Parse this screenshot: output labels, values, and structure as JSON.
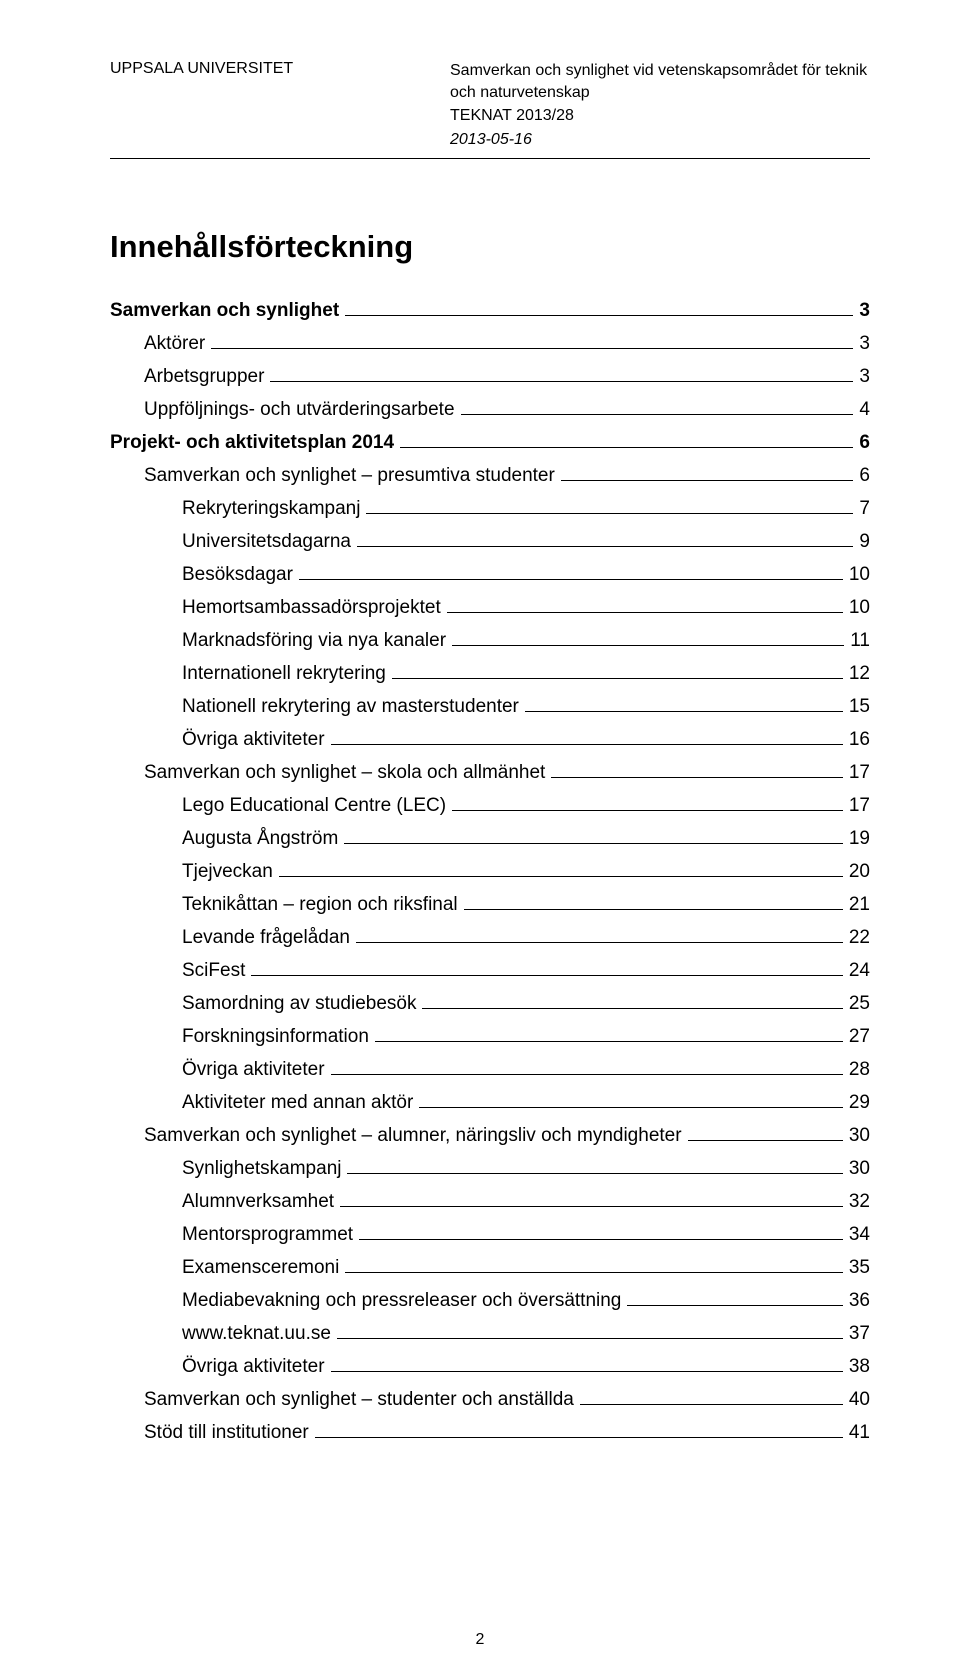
{
  "header": {
    "institution": "UPPSALA UNIVERSITET",
    "doc_topic": "Samverkan och synlighet vid vetenskapsområdet för teknik och naturvetenskap",
    "doc_ref": "TEKNAT 2013/28",
    "doc_date": "2013-05-16"
  },
  "title": "Innehållsförteckning",
  "toc": [
    {
      "label": "Samverkan och synlighet",
      "page": "3",
      "level": 0
    },
    {
      "label": "Aktörer",
      "page": "3",
      "level": 1
    },
    {
      "label": "Arbetsgrupper",
      "page": "3",
      "level": 1
    },
    {
      "label": "Uppföljnings- och utvärderingsarbete",
      "page": "4",
      "level": 1
    },
    {
      "label": "Projekt- och aktivitetsplan 2014",
      "page": "6",
      "level": 0
    },
    {
      "label": "Samverkan och synlighet – presumtiva studenter",
      "page": "6",
      "level": 1
    },
    {
      "label": "Rekryteringskampanj",
      "page": "7",
      "level": 2
    },
    {
      "label": "Universitetsdagarna",
      "page": "9",
      "level": 2
    },
    {
      "label": "Besöksdagar",
      "page": "10",
      "level": 2
    },
    {
      "label": "Hemortsambassadörsprojektet",
      "page": "10",
      "level": 2
    },
    {
      "label": "Marknadsföring via nya kanaler",
      "page": "11",
      "level": 2
    },
    {
      "label": "Internationell rekrytering",
      "page": "12",
      "level": 2
    },
    {
      "label": "Nationell rekrytering av masterstudenter",
      "page": "15",
      "level": 2
    },
    {
      "label": "Övriga aktiviteter",
      "page": "16",
      "level": 2
    },
    {
      "label": "Samverkan och synlighet – skola och allmänhet",
      "page": "17",
      "level": 1
    },
    {
      "label": "Lego Educational Centre (LEC)",
      "page": "17",
      "level": 2
    },
    {
      "label": "Augusta Ångström",
      "page": "19",
      "level": 2
    },
    {
      "label": "Tjejveckan",
      "page": "20",
      "level": 2
    },
    {
      "label": "Teknikåttan – region och riksfinal",
      "page": "21",
      "level": 2
    },
    {
      "label": "Levande frågelådan",
      "page": "22",
      "level": 2
    },
    {
      "label": "SciFest",
      "page": "24",
      "level": 2
    },
    {
      "label": "Samordning av studiebesök",
      "page": "25",
      "level": 2
    },
    {
      "label": "Forskningsinformation",
      "page": "27",
      "level": 2
    },
    {
      "label": "Övriga aktiviteter",
      "page": "28",
      "level": 2
    },
    {
      "label": "Aktiviteter med annan aktör",
      "page": "29",
      "level": 2
    },
    {
      "label": "Samverkan och synlighet – alumner, näringsliv och myndigheter",
      "page": "30",
      "level": 1
    },
    {
      "label": "Synlighetskampanj",
      "page": "30",
      "level": 2
    },
    {
      "label": "Alumnverksamhet",
      "page": "32",
      "level": 2
    },
    {
      "label": "Mentorsprogrammet",
      "page": "34",
      "level": 2
    },
    {
      "label": "Examensceremoni",
      "page": "35",
      "level": 2
    },
    {
      "label": "Mediabevakning och pressreleaser och översättning",
      "page": "36",
      "level": 2
    },
    {
      "label": "www.teknat.uu.se",
      "page": "37",
      "level": 2
    },
    {
      "label": "Övriga aktiviteter",
      "page": "38",
      "level": 2
    },
    {
      "label": "Samverkan och synlighet – studenter och anställda",
      "page": "40",
      "level": 1
    },
    {
      "label": "Stöd till institutioner",
      "page": "41",
      "level": 1
    }
  ],
  "page_number": "2",
  "colors": {
    "text": "#000000",
    "background": "#ffffff",
    "leader": "#000000"
  },
  "typography": {
    "body_fontsize_pt": 14,
    "title_fontsize_pt": 23,
    "font_family": "Arial"
  }
}
